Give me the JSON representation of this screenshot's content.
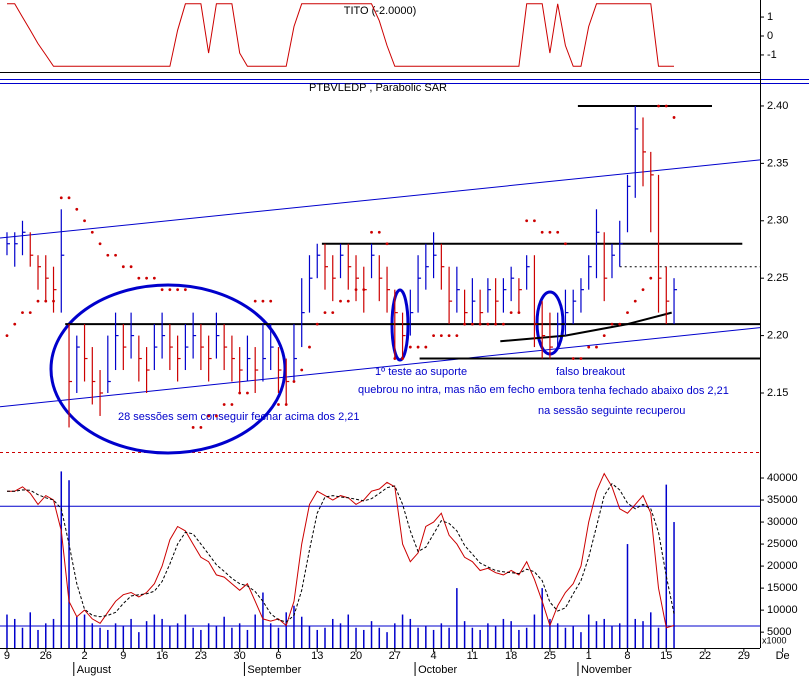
{
  "chart_data": [
    {
      "type": "line",
      "title": "TITO (-2.0000)",
      "color": "#cc0000",
      "ylim": [
        -1.9,
        1.9
      ],
      "yticks": [
        1,
        0,
        -1
      ],
      "values": [
        1.7,
        1.7,
        1.0,
        0.3,
        -0.4,
        -1.0,
        -1.6,
        -1.6,
        -1.6,
        -1.6,
        -1.6,
        -1.6,
        -1.6,
        -1.6,
        -1.6,
        -1.6,
        -1.6,
        -1.6,
        -1.6,
        -1.6,
        -1.6,
        -1.6,
        0.3,
        1.7,
        1.7,
        1.7,
        -0.9,
        1.7,
        1.7,
        1.7,
        -0.9,
        -1.6,
        -1.6,
        -1.6,
        -1.6,
        -1.6,
        -1.6,
        0.5,
        1.7,
        1.7,
        1.7,
        1.7,
        1.7,
        1.7,
        1.7,
        1.7,
        1.7,
        1.7,
        0.8,
        -0.5,
        -1.6,
        -1.6,
        -1.6,
        -1.6,
        -1.6,
        -1.6,
        -1.6,
        -1.6,
        -1.6,
        -1.6,
        -1.6,
        -1.6,
        -1.6,
        -1.6,
        -1.6,
        -1.6,
        -1.6,
        1.7,
        1.7,
        1.7,
        -0.9,
        1.7,
        -0.5,
        -1.6,
        -1.6,
        0.5,
        1.7,
        1.7,
        1.7,
        1.7,
        1.7,
        1.7,
        1.7,
        1.7,
        -1.6,
        -1.6,
        -1.6
      ]
    },
    {
      "type": "ohlc",
      "title": "PTBVLEDP , Parabolic SAR",
      "up_color": "#0000cc",
      "down_color": "#cc0000",
      "ylim": [
        2.1,
        2.42
      ],
      "yticks": [
        {
          "value": 2.4,
          "label": "2.40"
        },
        2.35,
        {
          "value": 2.3,
          "label": "2.30"
        },
        2.25,
        {
          "value": 2.2,
          "label": "2.20"
        },
        2.15
      ],
      "high": [
        2.29,
        2.29,
        2.3,
        2.29,
        2.27,
        2.27,
        2.26,
        2.31,
        2.21,
        2.2,
        2.21,
        2.19,
        2.17,
        2.2,
        2.22,
        2.21,
        2.22,
        2.2,
        2.19,
        2.21,
        2.22,
        2.21,
        2.2,
        2.21,
        2.22,
        2.21,
        2.2,
        2.22,
        2.21,
        2.2,
        2.19,
        2.2,
        2.19,
        2.21,
        2.21,
        2.19,
        2.18,
        2.21,
        2.25,
        2.27,
        2.28,
        2.28,
        2.27,
        2.28,
        2.28,
        2.27,
        2.26,
        2.28,
        2.27,
        2.26,
        2.24,
        2.22,
        2.24,
        2.27,
        2.28,
        2.29,
        2.28,
        2.26,
        2.26,
        2.24,
        2.25,
        2.24,
        2.25,
        2.25,
        2.25,
        2.26,
        2.25,
        2.27,
        2.27,
        2.23,
        2.22,
        2.22,
        2.24,
        2.24,
        2.25,
        2.27,
        2.31,
        2.29,
        2.28,
        2.3,
        2.34,
        2.4,
        2.39,
        2.36,
        2.34,
        2.26,
        2.25
      ],
      "low": [
        2.27,
        2.26,
        2.27,
        2.26,
        2.24,
        2.23,
        2.22,
        2.22,
        2.12,
        2.15,
        2.16,
        2.14,
        2.13,
        2.15,
        2.17,
        2.17,
        2.18,
        2.16,
        2.15,
        2.17,
        2.18,
        2.17,
        2.16,
        2.17,
        2.18,
        2.17,
        2.16,
        2.18,
        2.17,
        2.16,
        2.15,
        2.16,
        2.15,
        2.16,
        2.17,
        2.15,
        2.14,
        2.16,
        2.19,
        2.22,
        2.25,
        2.24,
        2.23,
        2.25,
        2.24,
        2.23,
        2.22,
        2.25,
        2.23,
        2.22,
        2.18,
        2.18,
        2.2,
        2.22,
        2.24,
        2.25,
        2.24,
        2.21,
        2.22,
        2.21,
        2.21,
        2.21,
        2.22,
        2.21,
        2.22,
        2.23,
        2.22,
        2.24,
        2.19,
        2.18,
        2.18,
        2.19,
        2.2,
        2.21,
        2.22,
        2.24,
        2.25,
        2.23,
        2.25,
        2.26,
        2.29,
        2.32,
        2.33,
        2.29,
        2.22,
        2.21,
        2.21
      ],
      "close": [
        2.28,
        2.28,
        2.29,
        2.27,
        2.26,
        2.25,
        2.24,
        2.27,
        2.16,
        2.19,
        2.18,
        2.16,
        2.15,
        2.16,
        2.2,
        2.19,
        2.2,
        2.18,
        2.17,
        2.19,
        2.2,
        2.19,
        2.18,
        2.19,
        2.2,
        2.19,
        2.18,
        2.2,
        2.19,
        2.18,
        2.17,
        2.18,
        2.17,
        2.18,
        2.19,
        2.17,
        2.16,
        2.18,
        2.22,
        2.25,
        2.27,
        2.26,
        2.25,
        2.27,
        2.26,
        2.25,
        2.24,
        2.27,
        2.25,
        2.24,
        2.22,
        2.2,
        2.22,
        2.25,
        2.26,
        2.27,
        2.26,
        2.23,
        2.24,
        2.22,
        2.23,
        2.22,
        2.24,
        2.23,
        2.24,
        2.25,
        2.24,
        2.26,
        2.21,
        2.2,
        2.19,
        2.21,
        2.22,
        2.23,
        2.24,
        2.26,
        2.29,
        2.25,
        2.27,
        2.28,
        2.33,
        2.38,
        2.36,
        2.34,
        2.25,
        2.23,
        2.24
      ],
      "sar": {
        "color": "#cc0000",
        "values": [
          2.2,
          2.21,
          2.22,
          2.22,
          2.23,
          2.23,
          2.23,
          2.32,
          2.32,
          2.31,
          2.3,
          2.29,
          2.28,
          2.27,
          2.27,
          2.26,
          2.26,
          2.25,
          2.25,
          2.25,
          2.24,
          2.24,
          2.24,
          2.24,
          2.12,
          2.12,
          2.13,
          2.13,
          2.14,
          2.14,
          2.15,
          2.15,
          2.23,
          2.23,
          2.23,
          2.14,
          2.14,
          2.16,
          2.17,
          2.19,
          2.21,
          2.22,
          2.22,
          2.23,
          2.23,
          2.24,
          2.24,
          2.29,
          2.29,
          2.28,
          2.18,
          2.18,
          2.19,
          2.19,
          2.19,
          2.2,
          2.2,
          2.2,
          2.2,
          2.21,
          2.21,
          2.21,
          2.21,
          2.21,
          2.21,
          2.22,
          2.22,
          2.3,
          2.3,
          2.29,
          2.29,
          2.29,
          2.28,
          2.18,
          2.18,
          2.19,
          2.19,
          2.2,
          2.21,
          2.21,
          2.22,
          2.23,
          2.24,
          2.25,
          2.4,
          2.4,
          2.39
        ]
      },
      "lines": [
        {
          "color": "#0000cc",
          "width": 1,
          "x": [
            -0.9,
            97.1
          ],
          "y": [
            2.285,
            2.353
          ]
        },
        {
          "color": "#0000cc",
          "width": 1,
          "x": [
            -0.9,
            97.1
          ],
          "y": [
            2.138,
            2.207
          ]
        },
        {
          "color": "#000000",
          "width": 2,
          "x": [
            40.6,
            94.8
          ],
          "y": [
            2.28,
            2.28
          ]
        },
        {
          "color": "#000000",
          "width": 2,
          "x": [
            7.5,
            97.1
          ],
          "y": [
            2.21,
            2.21
          ]
        },
        {
          "color": "#000000",
          "width": 2,
          "x": [
            53.2,
            97.1
          ],
          "y": [
            2.18,
            2.18
          ]
        },
        {
          "color": "#000000",
          "width": 2,
          "x": [
            73.6,
            90.9
          ],
          "y": [
            2.4,
            2.4
          ]
        },
        {
          "color": "#000000",
          "width": 1,
          "dash": true,
          "x": [
            79.0,
            97.1
          ],
          "y": [
            2.26,
            2.26
          ]
        },
        {
          "color": "#000000",
          "width": 2,
          "x": [
            63.6,
            72.0,
            80.0,
            85.7
          ],
          "y": [
            2.195,
            2.2,
            2.21,
            2.22
          ]
        }
      ],
      "annotations": [
        "28 sessões sem conseguir fechar acima dos 2,21",
        "1º teste ao suporte",
        "quebrou no intra, mas não em fecho",
        "falso breakout",
        "embora tenha fechado abaixo dos 2,21",
        "na sessão seguinte recuperou"
      ]
    },
    {
      "type": "volume",
      "color": "#0000cc",
      "unit_label": "x1000",
      "ylim": [
        1400,
        44000
      ],
      "yticks": [
        40000,
        35000,
        30000,
        25000,
        20000,
        15000,
        10000,
        5000
      ],
      "hlines": [
        33600,
        6400
      ],
      "values": [
        9000,
        8000,
        6000,
        9500,
        5500,
        7000,
        8000,
        41500,
        39500,
        8500,
        9000,
        7000,
        6000,
        5500,
        7000,
        6500,
        8000,
        5000,
        7500,
        9000,
        8000,
        6500,
        7000,
        9000,
        6000,
        5500,
        7000,
        6500,
        8500,
        6000,
        7000,
        5500,
        9000,
        14000,
        7000,
        6000,
        9500,
        11000,
        8500,
        6500,
        5500,
        6000,
        8000,
        7000,
        9000,
        6000,
        5500,
        7500,
        6000,
        5000,
        7000,
        9000,
        8000,
        6000,
        6500,
        5500,
        7000,
        6000,
        15000,
        7500,
        6000,
        5500,
        7000,
        6500,
        8000,
        7500,
        5500,
        6000,
        9000,
        15000,
        8000,
        7000,
        6000,
        6500,
        5000,
        9000,
        7500,
        8000,
        6500,
        7000,
        25000,
        8000,
        7500,
        9500,
        6000,
        38500,
        30000
      ],
      "series": [
        {
          "color": "#cc0000",
          "values": [
            37000,
            37000,
            38000,
            36500,
            34000,
            36000,
            35000,
            28000,
            12000,
            8500,
            10000,
            8000,
            7000,
            9500,
            12000,
            13500,
            14000,
            13000,
            14000,
            16000,
            20000,
            26000,
            29000,
            28000,
            25000,
            22000,
            21000,
            18000,
            17500,
            16000,
            14500,
            16000,
            12000,
            8000,
            7500,
            8000,
            6500,
            12000,
            25000,
            34000,
            37000,
            36000,
            35000,
            36000,
            35500,
            34000,
            35000,
            37000,
            37500,
            39000,
            38000,
            25000,
            21000,
            23000,
            29000,
            30000,
            32000,
            27000,
            25000,
            22000,
            21000,
            19000,
            19500,
            18500,
            18000,
            19000,
            18000,
            21000,
            17000,
            12000,
            6500,
            11000,
            14000,
            16000,
            20000,
            30000,
            37000,
            41000,
            38000,
            33000,
            32000,
            34000,
            36000,
            32000,
            15000,
            6000,
            6500
          ]
        },
        {
          "color": "#000000",
          "dash": true,
          "values": [
            37000,
            37000,
            37300,
            37200,
            36200,
            35500,
            35000,
            33000,
            25000,
            16000,
            10200,
            8800,
            8500,
            8800,
            9500,
            11500,
            13200,
            13500,
            13700,
            14300,
            16500,
            20500,
            25000,
            27700,
            27300,
            25000,
            22700,
            20300,
            18800,
            17200,
            16000,
            15500,
            14200,
            12000,
            9200,
            7800,
            7300,
            8800,
            14500,
            23700,
            32000,
            35700,
            36000,
            35700,
            35500,
            35200,
            34800,
            35300,
            36500,
            37800,
            38200,
            34000,
            28000,
            23300,
            24300,
            27300,
            30300,
            29700,
            28000,
            24700,
            22700,
            20700,
            19800,
            19000,
            18700,
            18500,
            18300,
            19300,
            18700,
            16700,
            11800,
            9800,
            10500,
            13700,
            16700,
            22000,
            29000,
            36000,
            38700,
            37300,
            34300,
            33000,
            34000,
            33000,
            27700,
            17700,
            9200
          ]
        }
      ],
      "xlim": [
        -0.9,
        103.4
      ],
      "xticks": [
        {
          "value": 0,
          "label": "9"
        },
        {
          "value": 5,
          "label": "26"
        },
        {
          "value": 10,
          "label": "2"
        },
        {
          "value": 15,
          "label": "9"
        },
        {
          "value": 20,
          "label": "16"
        },
        {
          "value": 25,
          "label": "23"
        },
        {
          "value": 30,
          "label": "30"
        },
        {
          "value": 35,
          "label": "6"
        },
        {
          "value": 40,
          "label": "13"
        },
        {
          "value": 45,
          "label": "20"
        },
        {
          "value": 50,
          "label": "27"
        },
        {
          "value": 55,
          "label": "4"
        },
        {
          "value": 60,
          "label": "11"
        },
        {
          "value": 65,
          "label": "18"
        },
        {
          "value": 70,
          "label": "25"
        },
        {
          "value": 75,
          "label": "1"
        },
        {
          "value": 80,
          "label": "8"
        },
        {
          "value": 85,
          "label": "15"
        },
        {
          "value": 90,
          "label": "22"
        },
        {
          "value": 95,
          "label": "29"
        },
        {
          "value": 100,
          "label": "De"
        }
      ],
      "months": [
        {
          "value": 9,
          "label": "August"
        },
        {
          "value": 31,
          "label": "September"
        },
        {
          "value": 53,
          "label": "October"
        },
        {
          "value": 74,
          "label": "November"
        }
      ]
    }
  ]
}
